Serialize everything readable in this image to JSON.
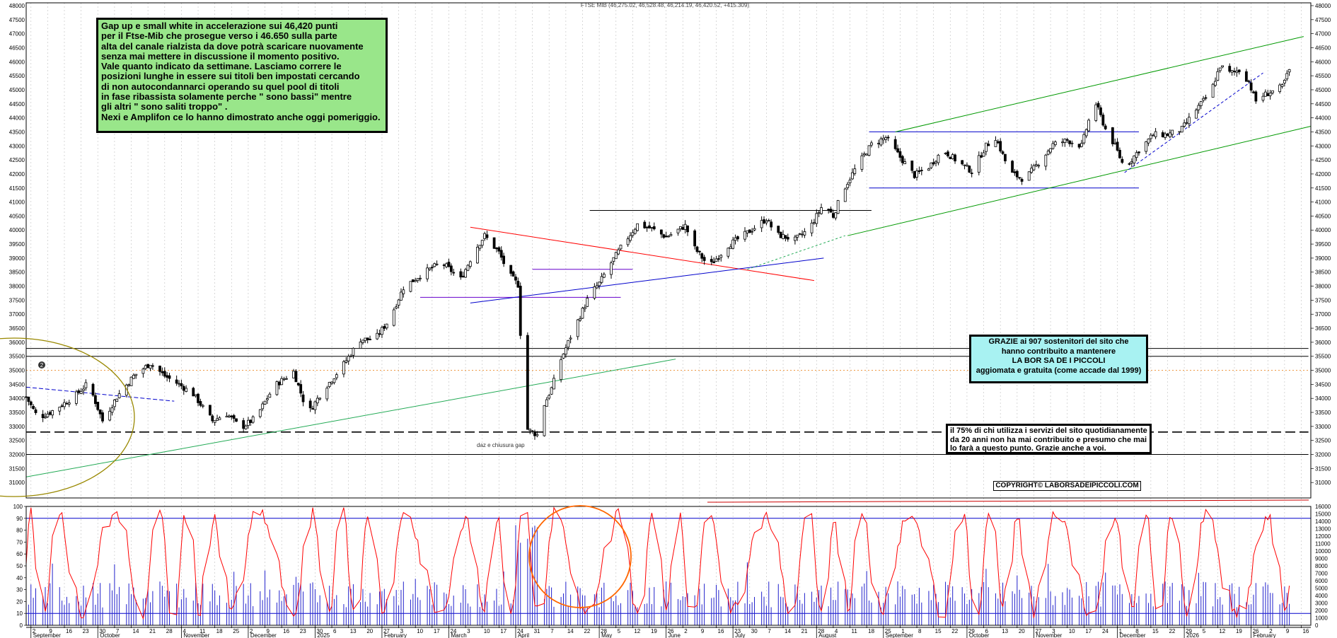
{
  "header": "FTSE MIB (46,275.02, 46,528.48, 46,214.19, 46,420.52, +415.309)",
  "comment": {
    "lines": [
      "Gap up e small white in accelerazione sui 46,420 punti",
      "per il Ftse-Mib che prosegue verso i 46.650 sulla parte",
      "alta del canale rialzista da dove potrà scaricare nuovamente",
      "senza mai mettere in discussione il momento positivo.",
      "Vale quanto indicato da settimane. Lasciamo correre le",
      "posizioni lunghe in essere sui titoli ben impostati cercando",
      "di non autocondannarci operando su quel pool di titoli",
      "in fase ribassista solamente perche \" sono bassi\" mentre",
      "gli altri \" sono saliti troppo\" .",
      "Nexi e Amplifon ce lo hanno dimostrato anche oggi pomeriggio."
    ]
  },
  "thanks_box": {
    "lines": [
      "GRAZIE  ai 907  sostenitori del sito che",
      "hanno contribuito a mantenere",
      "LA BOR SA DE I PICCOLI",
      "aggiomata e gratuita (come accade dal 1999)"
    ]
  },
  "contrib_box": {
    "lines": [
      "il 75%  di chi utilizza i servizi del sito quotidianamente",
      "da 20 anni non ha mai contribuito e presumo che mai",
      "lo farà a questo punto. Grazie anche a voi."
    ]
  },
  "copyright": "COPYRIGHT© LABORSADEIPICCOLI.COM",
  "gap_note": "daz e chiusura gap",
  "marker": "2",
  "colors": {
    "price": "#000000",
    "resistance": "#ff0000",
    "support_blue": "#0000cc",
    "channel": "#009900",
    "trend_green": "#22aa55",
    "oscillator": "#ff0000",
    "volume": "#2222cc",
    "circle": "#ff6600",
    "ellipse": "#998800"
  },
  "chart_data": {
    "type": "candlestick",
    "title": "FTSE MIB",
    "ohlc_last": {
      "open": 46275.02,
      "high": 46528.48,
      "low": 46214.19,
      "close": 46420.52,
      "change": 415.309
    },
    "y_range": [
      30450,
      48100
    ],
    "y_ticks": [
      31000,
      31500,
      32000,
      32500,
      33000,
      33500,
      34000,
      34500,
      35000,
      35500,
      36000,
      36500,
      37000,
      37500,
      38000,
      38500,
      39000,
      39500,
      40000,
      40500,
      41000,
      41500,
      42000,
      42500,
      43000,
      43500,
      44000,
      44500,
      45000,
      45500,
      46000,
      46500,
      47000,
      47500,
      48000
    ],
    "x_labels": [
      {
        "d": 2,
        "t": "2"
      },
      {
        "d": 9,
        "t": "9"
      },
      {
        "d": 16,
        "t": "16"
      },
      {
        "d": 23,
        "t": "23"
      },
      {
        "d": 30,
        "t": "30"
      },
      {
        "d": 37,
        "t": "7"
      },
      {
        "d": 44,
        "t": "14"
      },
      {
        "d": 51,
        "t": "21"
      },
      {
        "d": 58,
        "t": "28"
      },
      {
        "d": 65,
        "t": "4"
      },
      {
        "d": 72,
        "t": "11"
      },
      {
        "d": 79,
        "t": "18"
      },
      {
        "d": 86,
        "t": "25"
      },
      {
        "d": 93,
        "t": "2"
      },
      {
        "d": 100,
        "t": "9"
      },
      {
        "d": 107,
        "t": "16"
      },
      {
        "d": 114,
        "t": "23"
      },
      {
        "d": 121,
        "t": "30"
      },
      {
        "d": 128,
        "t": "6"
      },
      {
        "d": 135,
        "t": "13"
      },
      {
        "d": 142,
        "t": "20"
      },
      {
        "d": 149,
        "t": "27"
      },
      {
        "d": 156,
        "t": "3"
      },
      {
        "d": 163,
        "t": "10"
      },
      {
        "d": 170,
        "t": "17"
      },
      {
        "d": 177,
        "t": "24"
      },
      {
        "d": 184,
        "t": "3"
      },
      {
        "d": 191,
        "t": "10"
      },
      {
        "d": 198,
        "t": "17"
      },
      {
        "d": 205,
        "t": "24"
      },
      {
        "d": 212,
        "t": "31"
      },
      {
        "d": 219,
        "t": "7"
      },
      {
        "d": 226,
        "t": "14"
      },
      {
        "d": 233,
        "t": "22"
      },
      {
        "d": 240,
        "t": "28"
      },
      {
        "d": 247,
        "t": "5"
      },
      {
        "d": 254,
        "t": "12"
      },
      {
        "d": 261,
        "t": "19"
      },
      {
        "d": 268,
        "t": "26"
      },
      {
        "d": 275,
        "t": "2"
      },
      {
        "d": 282,
        "t": "9"
      },
      {
        "d": 289,
        "t": "16"
      },
      {
        "d": 296,
        "t": "23"
      },
      {
        "d": 303,
        "t": "30"
      },
      {
        "d": 310,
        "t": "7"
      },
      {
        "d": 317,
        "t": "14"
      },
      {
        "d": 324,
        "t": "21"
      },
      {
        "d": 331,
        "t": "28"
      },
      {
        "d": 338,
        "t": "4"
      },
      {
        "d": 345,
        "t": "11"
      },
      {
        "d": 352,
        "t": "18"
      },
      {
        "d": 359,
        "t": "25"
      },
      {
        "d": 366,
        "t": "1"
      },
      {
        "d": 373,
        "t": "8"
      },
      {
        "d": 380,
        "t": "15"
      },
      {
        "d": 387,
        "t": "22"
      },
      {
        "d": 394,
        "t": "29"
      },
      {
        "d": 401,
        "t": "6"
      },
      {
        "d": 408,
        "t": "13"
      },
      {
        "d": 415,
        "t": "20"
      },
      {
        "d": 422,
        "t": "27"
      },
      {
        "d": 429,
        "t": "3"
      },
      {
        "d": 436,
        "t": "10"
      },
      {
        "d": 443,
        "t": "17"
      },
      {
        "d": 450,
        "t": "24"
      },
      {
        "d": 457,
        "t": "1"
      },
      {
        "d": 464,
        "t": "8"
      },
      {
        "d": 471,
        "t": "15"
      },
      {
        "d": 478,
        "t": "22"
      },
      {
        "d": 485,
        "t": "29"
      },
      {
        "d": 492,
        "t": "5"
      },
      {
        "d": 499,
        "t": "12"
      },
      {
        "d": 506,
        "t": "19"
      },
      {
        "d": 513,
        "t": "26"
      },
      {
        "d": 520,
        "t": "2"
      },
      {
        "d": 527,
        "t": "9"
      },
      {
        "d": 534,
        "t": "16"
      }
    ],
    "months": [
      {
        "d": 2,
        "t": "September"
      },
      {
        "d": 30,
        "t": "October"
      },
      {
        "d": 65,
        "t": "November"
      },
      {
        "d": 93,
        "t": "December"
      },
      {
        "d": 121,
        "t": "2025"
      },
      {
        "d": 149,
        "t": "February"
      },
      {
        "d": 177,
        "t": "March"
      },
      {
        "d": 205,
        "t": "April"
      },
      {
        "d": 240,
        "t": "May"
      },
      {
        "d": 268,
        "t": "June"
      },
      {
        "d": 296,
        "t": "July"
      },
      {
        "d": 331,
        "t": "August"
      },
      {
        "d": 359,
        "t": "September"
      },
      {
        "d": 394,
        "t": "October"
      },
      {
        "d": 422,
        "t": "November"
      },
      {
        "d": 457,
        "t": "December"
      },
      {
        "d": 485,
        "t": "2026"
      },
      {
        "d": 513,
        "t": "February"
      }
    ],
    "anchors": [
      [
        0,
        34050
      ],
      [
        5,
        33300
      ],
      [
        10,
        33500
      ],
      [
        20,
        34050
      ],
      [
        26,
        34550
      ],
      [
        32,
        33200
      ],
      [
        38,
        34050
      ],
      [
        45,
        34800
      ],
      [
        52,
        35250
      ],
      [
        58,
        34800
      ],
      [
        64,
        34500
      ],
      [
        70,
        34150
      ],
      [
        78,
        33200
      ],
      [
        84,
        33450
      ],
      [
        90,
        32950
      ],
      [
        96,
        33300
      ],
      [
        104,
        34450
      ],
      [
        112,
        34950
      ],
      [
        118,
        33450
      ],
      [
        124,
        34250
      ],
      [
        132,
        35100
      ],
      [
        140,
        36100
      ],
      [
        146,
        36100
      ],
      [
        152,
        36800
      ],
      [
        158,
        37950
      ],
      [
        166,
        38450
      ],
      [
        174,
        38850
      ],
      [
        182,
        38250
      ],
      [
        188,
        39300
      ],
      [
        192,
        39800
      ],
      [
        198,
        39200
      ],
      [
        202,
        38450
      ],
      [
        206,
        38050
      ],
      [
        208,
        34600
      ],
      [
        210,
        32900
      ],
      [
        212,
        32800
      ],
      [
        214,
        32700
      ],
      [
        216,
        33600
      ],
      [
        220,
        34350
      ],
      [
        224,
        35400
      ],
      [
        228,
        36200
      ],
      [
        236,
        37700
      ],
      [
        240,
        38100
      ],
      [
        244,
        38700
      ],
      [
        250,
        39500
      ],
      [
        256,
        40200
      ],
      [
        262,
        40050
      ],
      [
        268,
        39750
      ],
      [
        276,
        40150
      ],
      [
        280,
        39350
      ],
      [
        286,
        38700
      ],
      [
        294,
        39450
      ],
      [
        302,
        39900
      ],
      [
        310,
        40400
      ],
      [
        314,
        39850
      ],
      [
        322,
        39650
      ],
      [
        328,
        40050
      ],
      [
        334,
        40950
      ],
      [
        338,
        40500
      ],
      [
        342,
        41400
      ],
      [
        348,
        42300
      ],
      [
        354,
        43050
      ],
      [
        360,
        43300
      ],
      [
        366,
        42600
      ],
      [
        372,
        41950
      ],
      [
        378,
        42250
      ],
      [
        384,
        42850
      ],
      [
        390,
        42450
      ],
      [
        396,
        42100
      ],
      [
        402,
        43000
      ],
      [
        406,
        43300
      ],
      [
        412,
        42050
      ],
      [
        418,
        41800
      ],
      [
        424,
        42400
      ],
      [
        430,
        43050
      ],
      [
        436,
        43200
      ],
      [
        442,
        43000
      ],
      [
        446,
        44200
      ],
      [
        448,
        44500
      ],
      [
        452,
        43600
      ],
      [
        456,
        43000
      ],
      [
        460,
        42200
      ],
      [
        466,
        42850
      ],
      [
        472,
        43400
      ],
      [
        478,
        43400
      ],
      [
        484,
        43600
      ],
      [
        490,
        44300
      ],
      [
        496,
        44900
      ],
      [
        500,
        45850
      ],
      [
        504,
        45600
      ],
      [
        508,
        45700
      ],
      [
        512,
        45300
      ],
      [
        514,
        44800
      ],
      [
        516,
        44400
      ],
      [
        518,
        44800
      ],
      [
        522,
        44950
      ],
      [
        526,
        45100
      ],
      [
        530,
        45900
      ],
      [
        531,
        46420
      ]
    ],
    "levels": [
      {
        "value": 35780,
        "from": 0,
        "to": 537,
        "color": "#000000",
        "width": 1
      },
      {
        "value": 35500,
        "from": 0,
        "to": 537,
        "color": "#000000",
        "width": 1
      },
      {
        "value": 32800,
        "from": 0,
        "to": 537,
        "color": "#000000",
        "width": 1.6,
        "dash": "14,6"
      },
      {
        "value": 32000,
        "from": 0,
        "to": 537,
        "color": "#000000",
        "width": 1
      },
      {
        "value": 35000,
        "from": 0,
        "to": 537,
        "color": "#ee9944",
        "width": 1,
        "dash": "2,3"
      },
      {
        "value": 43500,
        "from": 353,
        "to": 466,
        "color": "#0000cc",
        "width": 1
      },
      {
        "value": 41500,
        "from": 353,
        "to": 466,
        "color": "#0000cc",
        "width": 1
      },
      {
        "value": 40700,
        "from": 236,
        "to": 354,
        "color": "#000000",
        "width": 1
      },
      {
        "value": 38600,
        "from": 212,
        "to": 254,
        "color": "#6600cc",
        "width": 1
      },
      {
        "value": 37600,
        "from": 165,
        "to": 249,
        "color": "#6600cc",
        "width": 1
      }
    ],
    "trendlines": [
      {
        "d1": 0,
        "v1": 31200,
        "d2": 272,
        "v2": 35400,
        "color": "#22aa55",
        "width": 1
      },
      {
        "d1": 186,
        "v1": 40100,
        "d2": 330,
        "v2": 38200,
        "color": "#ff0000",
        "width": 1
      },
      {
        "d1": 186,
        "v1": 37400,
        "d2": 334,
        "v2": 39000,
        "color": "#0000cc",
        "width": 1
      },
      {
        "d1": 302,
        "v1": 38600,
        "d2": 343,
        "v2": 39800,
        "color": "#22aa55",
        "width": 1,
        "dash": "3,3"
      },
      {
        "d1": 0,
        "v1": 34400,
        "d2": 62,
        "v2": 33900,
        "color": "#0000cc",
        "width": 1,
        "dash": "6,3"
      },
      {
        "d1": 344,
        "v1": 39800,
        "d2": 538,
        "v2": 43700,
        "color": "#009900",
        "width": 1
      },
      {
        "d1": 364,
        "v1": 43500,
        "d2": 535,
        "v2": 46900,
        "color": "#009900",
        "width": 1
      },
      {
        "d1": 460,
        "v1": 42050,
        "d2": 518,
        "v2": 45600,
        "color": "#0000cc",
        "width": 1,
        "dash": "4,3"
      }
    ],
    "oscillator": {
      "range": [
        0,
        100
      ],
      "y_ticks": [
        0,
        10,
        20,
        30,
        40,
        50,
        60,
        70,
        80,
        90,
        100
      ],
      "bands": [
        90,
        10
      ],
      "volume_ticks": [
        0,
        1000,
        2000,
        3000,
        4000,
        5000,
        6000,
        7000,
        8000,
        9000,
        10000,
        11000,
        12000,
        13000,
        14000,
        15000,
        16000
      ]
    }
  }
}
